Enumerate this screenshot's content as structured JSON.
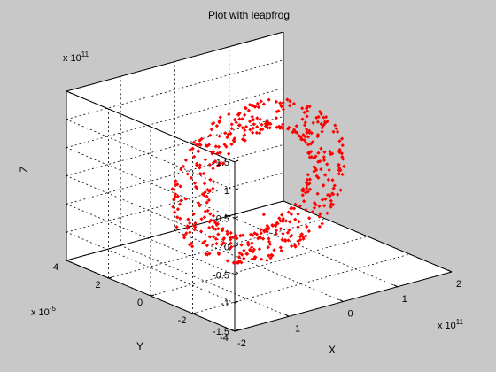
{
  "chart_data": {
    "type": "scatter3d",
    "title": "Plot with leapfrog",
    "xlabel": "X",
    "ylabel": "Y",
    "zlabel": "Z",
    "x_multiplier": {
      "base": "x 10",
      "exponent": "11"
    },
    "y_multiplier": {
      "base": "x 10",
      "exponent": "-5"
    },
    "z_multiplier": {
      "base": "x 10",
      "exponent": "11"
    },
    "xlim": [
      -2,
      2
    ],
    "ylim": [
      -4,
      4
    ],
    "zlim": [
      -1.5,
      1.5
    ],
    "x_ticks": [
      "-2",
      "-1",
      "0",
      "1",
      "2"
    ],
    "y_ticks": [
      "-4",
      "-2",
      "0",
      "2",
      "4"
    ],
    "z_ticks": [
      "-1.5",
      "-1",
      "-0.5",
      "0",
      "0.5",
      "1",
      "1.5"
    ],
    "grid": true,
    "marker_color": "#ff0000",
    "torus": {
      "major_radius": 1.25,
      "tube_radius_x": 0.28,
      "tube_radius_z": 0.25,
      "y_amplitude": 0.5,
      "point_count": 520
    },
    "outlier": {
      "x": -0.3,
      "y": -1,
      "z": -0.35
    }
  }
}
